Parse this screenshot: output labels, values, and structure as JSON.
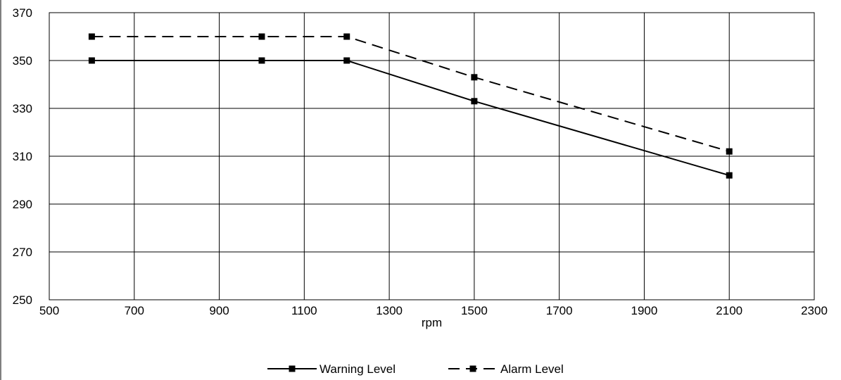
{
  "chart_data": {
    "type": "line",
    "title": "",
    "xlabel": "rpm",
    "ylabel": "",
    "xlim": [
      500,
      2300
    ],
    "ylim": [
      250,
      370
    ],
    "xticks": [
      500,
      700,
      900,
      1100,
      1300,
      1500,
      1700,
      1900,
      2100,
      2300
    ],
    "yticks": [
      250,
      270,
      290,
      310,
      330,
      350,
      370
    ],
    "grid": true,
    "legend_position": "bottom",
    "series": [
      {
        "name": "Warning Level",
        "line_style": "solid",
        "marker": "square",
        "color": "#000000",
        "x": [
          600,
          1000,
          1200,
          1500,
          2100
        ],
        "y": [
          350,
          350,
          350,
          333,
          302
        ]
      },
      {
        "name": "Alarm Level",
        "line_style": "dashed",
        "marker": "square",
        "color": "#000000",
        "x": [
          600,
          1000,
          1200,
          1500,
          2100
        ],
        "y": [
          360,
          360,
          360,
          343,
          312
        ]
      }
    ]
  }
}
